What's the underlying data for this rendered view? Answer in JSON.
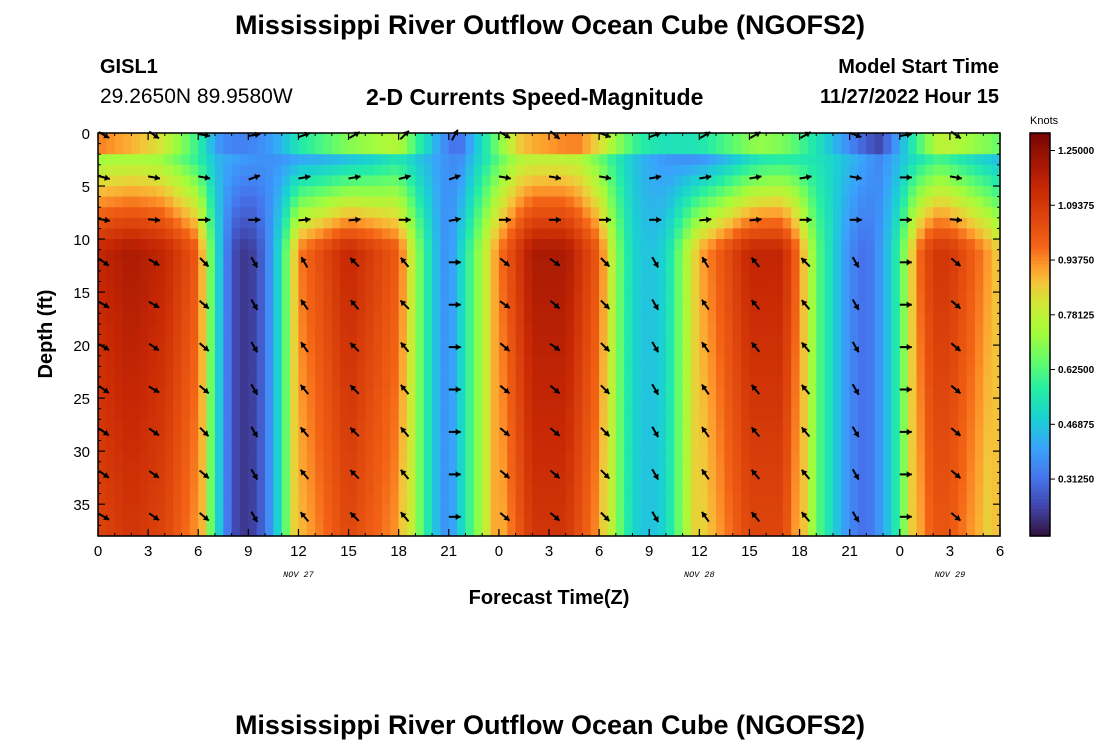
{
  "header": {
    "title": "Mississippi River Outflow Ocean Cube (NGOFS2)",
    "station_id": "GISL1",
    "station_location": "29.2650N  89.9580W",
    "subtitle": "2-D Currents Speed-Magnitude",
    "model_start_label": "Model Start Time",
    "model_start_value": "11/27/2022 Hour 15"
  },
  "footer": {
    "title": "Mississippi River Outflow Ocean Cube (NGOFS2)"
  },
  "chart_data": {
    "type": "heatmap",
    "xlabel": "Forecast Time(Z)",
    "ylabel": "Depth (ft)",
    "x_ticks": [
      "0",
      "3",
      "6",
      "9",
      "12",
      "15",
      "18",
      "21",
      "0",
      "3",
      "6",
      "9",
      "12",
      "15",
      "18",
      "21",
      "0",
      "3",
      "6"
    ],
    "x_hours": [
      0,
      3,
      6,
      9,
      12,
      15,
      18,
      21,
      24,
      27,
      30,
      33,
      36,
      39,
      42,
      45,
      48,
      51,
      54
    ],
    "xlim": [
      0,
      54
    ],
    "date_labels": [
      {
        "text": "NOV 27",
        "hour": 12
      },
      {
        "text": "NOV 28",
        "hour": 36
      },
      {
        "text": "NOV 29",
        "hour": 51
      }
    ],
    "y_ticks": [
      0,
      5,
      10,
      15,
      20,
      25,
      30,
      35
    ],
    "ylim": [
      0,
      38
    ],
    "y_inverted": true,
    "colorbar": {
      "title": "Knots",
      "tick_labels": [
        "1.25000",
        "1.09375",
        "0.93750",
        "0.78125",
        "0.62500",
        "0.46875",
        "0.31250"
      ],
      "tick_values": [
        1.25,
        1.09375,
        0.9375,
        0.78125,
        0.625,
        0.46875,
        0.3125
      ],
      "range": [
        0.15,
        1.3
      ],
      "colormap": "turbo"
    },
    "speed_profile": {
      "hours": [
        0,
        2,
        4,
        6,
        7,
        8,
        9,
        10,
        11,
        12,
        15,
        18,
        19.5,
        20.5,
        21,
        22,
        24,
        26,
        28,
        30,
        31,
        32,
        33,
        34,
        36,
        39,
        41,
        42,
        43,
        45,
        46,
        47,
        48,
        49,
        50,
        51,
        53,
        54
      ],
      "deep_knots": [
        1.15,
        1.2,
        1.15,
        1.0,
        0.55,
        0.25,
        0.2,
        0.3,
        0.55,
        0.95,
        1.15,
        1.0,
        0.6,
        0.4,
        0.35,
        0.55,
        0.95,
        1.2,
        1.2,
        1.0,
        0.7,
        0.5,
        0.45,
        0.5,
        0.9,
        1.15,
        1.15,
        0.95,
        0.65,
        0.35,
        0.3,
        0.4,
        0.6,
        0.95,
        1.1,
        1.1,
        0.95,
        0.85
      ]
    },
    "surface_knots": [
      0.9,
      0.75,
      0.35,
      0.4,
      0.55,
      0.7,
      0.25,
      0.8,
      0.9,
      0.6,
      0.45,
      0.6,
      0.5,
      0.2,
      0.7,
      0.6
    ],
    "vector_depths_ft": [
      0,
      4,
      8,
      12,
      16,
      20,
      24,
      28,
      32,
      36
    ],
    "vector_hours": [
      0,
      3,
      6,
      9,
      12,
      15,
      18,
      21,
      24,
      27,
      30,
      33,
      36,
      39,
      42,
      45,
      48,
      51
    ],
    "vector_angles_deg": [
      [
        30,
        35,
        10,
        -10,
        -20,
        -30,
        -45,
        -60,
        30,
        40,
        20,
        -20,
        -30,
        -30,
        -30,
        20,
        -10,
        35
      ],
      [
        15,
        10,
        10,
        -20,
        -10,
        -10,
        -15,
        -20,
        10,
        10,
        10,
        -10,
        -10,
        -10,
        -10,
        10,
        0,
        10
      ],
      [
        10,
        5,
        0,
        0,
        -5,
        -5,
        0,
        -10,
        0,
        0,
        0,
        0,
        -5,
        -5,
        0,
        0,
        0,
        5
      ],
      [
        35,
        30,
        45,
        60,
        -120,
        -135,
        -130,
        0,
        40,
        35,
        45,
        60,
        -120,
        -130,
        -135,
        60,
        0,
        40
      ],
      [
        30,
        30,
        40,
        60,
        -125,
        -130,
        -135,
        0,
        35,
        40,
        45,
        60,
        -125,
        -130,
        -130,
        60,
        0,
        40
      ],
      [
        30,
        35,
        40,
        60,
        -125,
        -135,
        -130,
        0,
        40,
        35,
        45,
        60,
        -125,
        -130,
        -130,
        60,
        0,
        40
      ],
      [
        35,
        30,
        40,
        60,
        -130,
        -135,
        -130,
        0,
        40,
        40,
        45,
        60,
        -125,
        -130,
        -130,
        60,
        0,
        40
      ],
      [
        35,
        35,
        45,
        60,
        -130,
        -135,
        -130,
        0,
        40,
        40,
        45,
        60,
        -125,
        -130,
        -130,
        60,
        0,
        40
      ],
      [
        35,
        35,
        40,
        60,
        -130,
        -135,
        -130,
        0,
        40,
        40,
        45,
        60,
        -125,
        -130,
        -130,
        60,
        0,
        40
      ],
      [
        30,
        35,
        40,
        60,
        -130,
        -135,
        -130,
        0,
        40,
        40,
        45,
        60,
        -125,
        -130,
        -130,
        60,
        0,
        40
      ]
    ]
  }
}
